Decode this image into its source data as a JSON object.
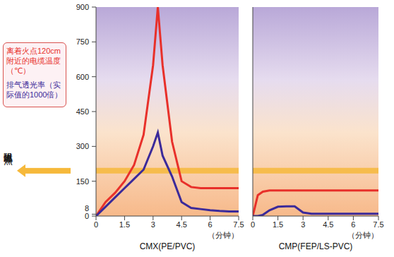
{
  "chart_data": [
    {
      "type": "line",
      "title": "CMX(PE/PVC)",
      "x_label": "（分钟）",
      "x": [
        0,
        0.5,
        1,
        1.5,
        2,
        2.5,
        3,
        3.25,
        3.5,
        4,
        4.5,
        5,
        5.5,
        6,
        6.5,
        7,
        7.5
      ],
      "xlim": [
        0,
        7.5
      ],
      "xticks": [
        0,
        1.5,
        3,
        4.5,
        6,
        7.5
      ],
      "ylim": [
        0,
        900
      ],
      "yticks": [
        0,
        8,
        150,
        300,
        450,
        600,
        750,
        900
      ],
      "legend": "left",
      "series": [
        {
          "name": "离着火点120cm附近的电缆温度（℃）",
          "color": "#e8302a",
          "values": [
            0,
            60,
            100,
            150,
            220,
            350,
            650,
            900,
            650,
            320,
            150,
            125,
            120,
            120,
            120,
            120,
            120
          ]
        },
        {
          "name": "排气透光率（实际值的1000倍）",
          "color": "#3b2a9a",
          "values": [
            0,
            40,
            80,
            120,
            160,
            200,
            300,
            360,
            260,
            170,
            60,
            35,
            30,
            25,
            22,
            20,
            20
          ]
        }
      ]
    },
    {
      "type": "line",
      "title": "CMP(FEP/LS-PVC)",
      "x_label": "（分钟）",
      "x": [
        0,
        0.3,
        0.6,
        1,
        1.5,
        2,
        2.5,
        3,
        3.5,
        4,
        5,
        6,
        7,
        7.5
      ],
      "xlim": [
        0,
        7.5
      ],
      "xticks": [
        0,
        1.5,
        3,
        4.5,
        6,
        7.5
      ],
      "ylim": [
        0,
        900
      ],
      "yticks": [
        0,
        8,
        150,
        300,
        450,
        600,
        750,
        900
      ],
      "tick_labels": "x",
      "series": [
        {
          "name": "离着火点120cm附近的电缆温度（℃）",
          "color": "#e8302a",
          "values": [
            0,
            90,
            105,
            110,
            110,
            110,
            110,
            110,
            110,
            110,
            110,
            110,
            110,
            110
          ]
        },
        {
          "name": "排气透光率（实际值的1000倍）",
          "color": "#3b2a9a",
          "values": [
            0,
            0,
            5,
            25,
            40,
            42,
            42,
            15,
            10,
            10,
            10,
            10,
            10,
            10
          ]
        }
      ]
    }
  ],
  "annotations": [
    {
      "text": "阻燃临界点",
      "y": 195
    }
  ]
}
